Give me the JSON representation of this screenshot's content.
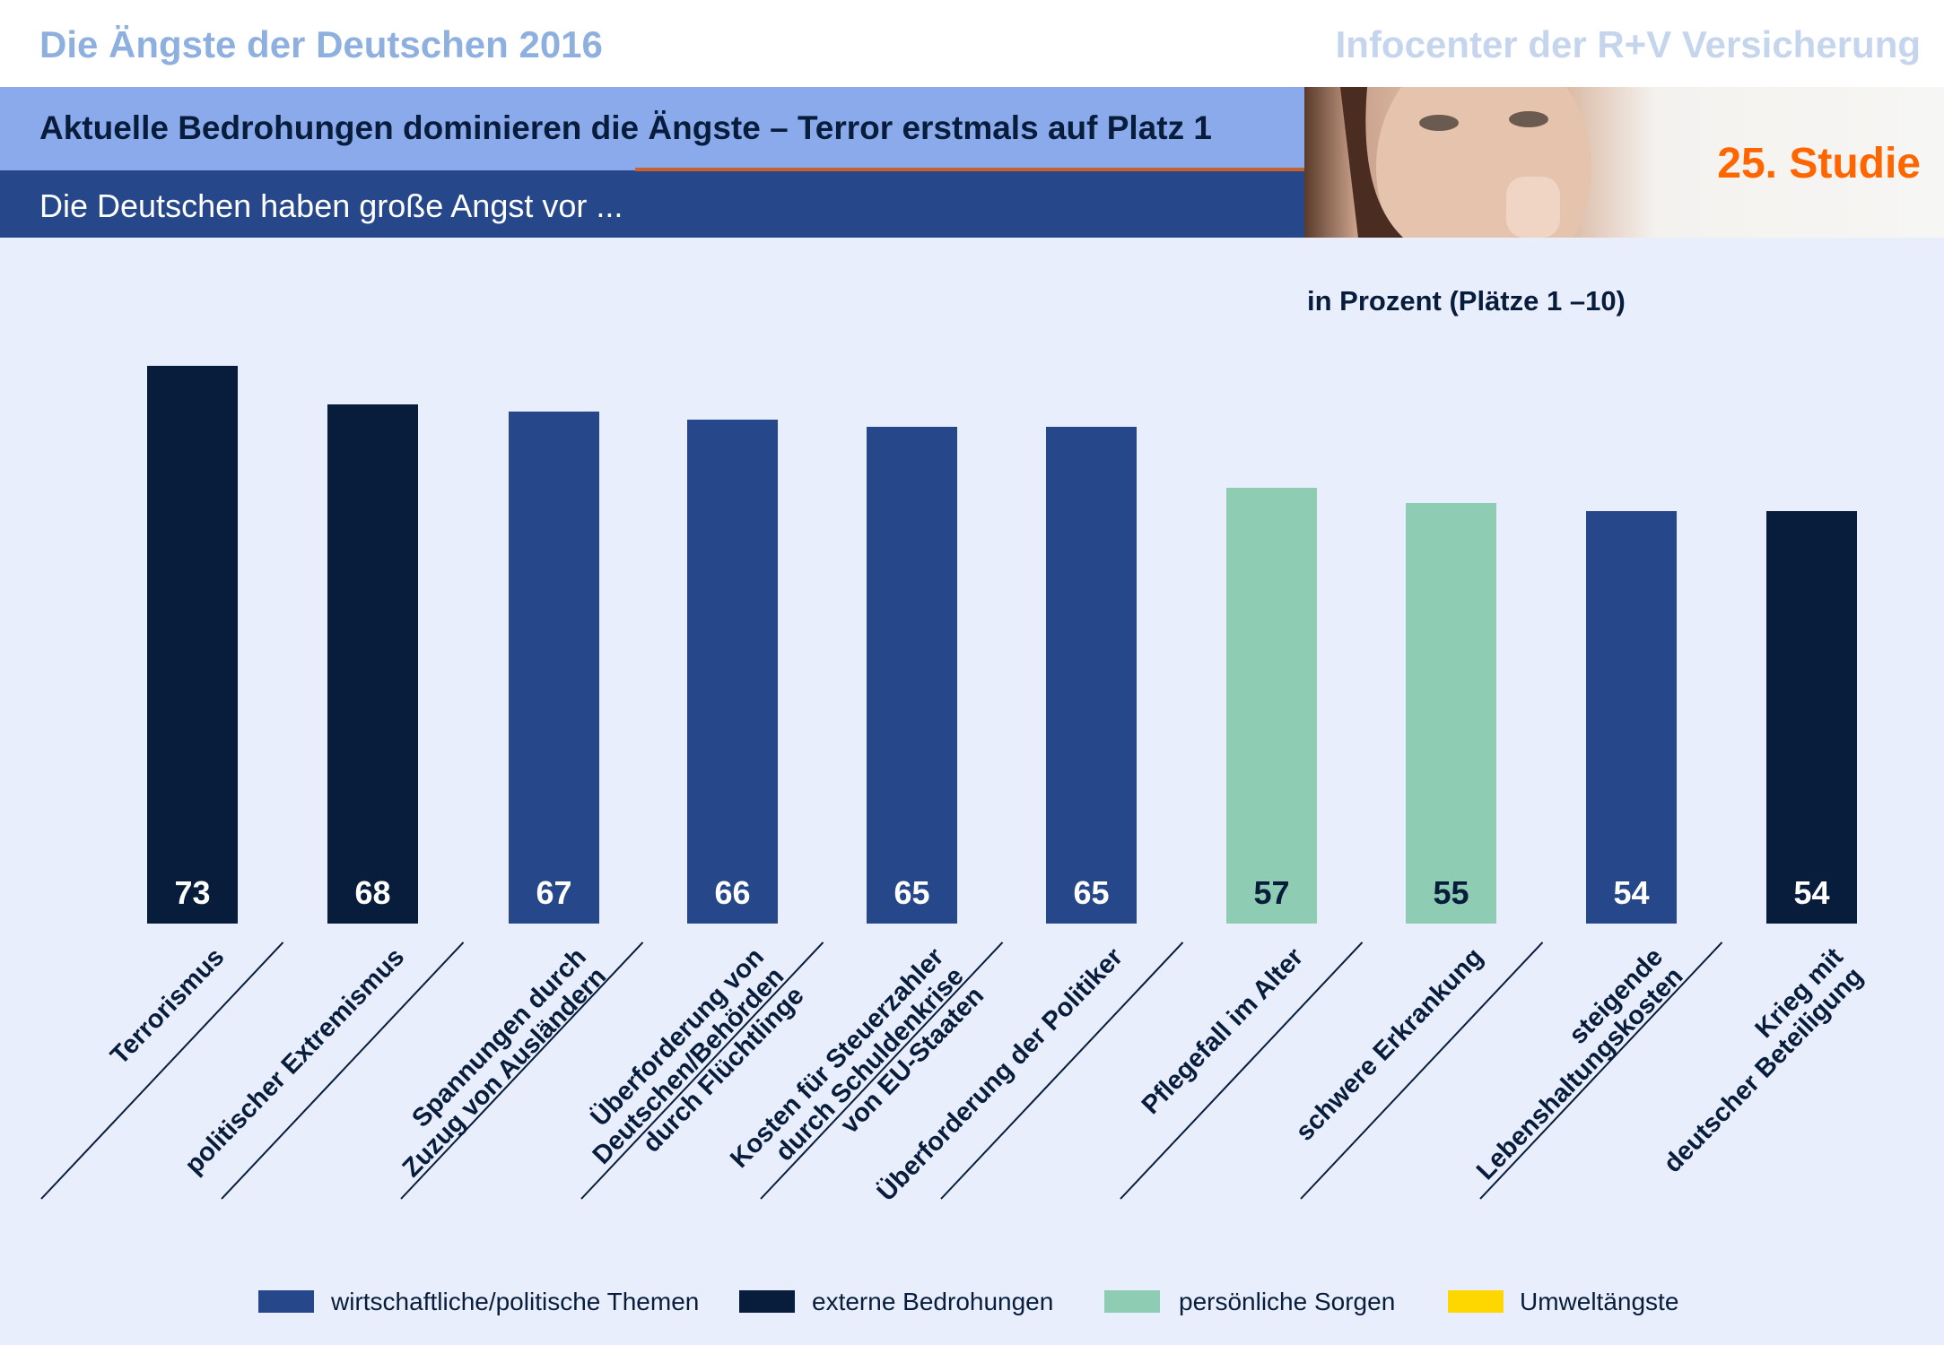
{
  "header": {
    "title": "Die Ängste der Deutschen 2016",
    "org": "Infocenter der R+V Versicherung",
    "headline": "Aktuelle Bedrohungen dominieren die Ängste – Terror erstmals auf Platz 1",
    "subtitle": "Die Deutschen haben große Angst vor ...",
    "study": "25. Studie"
  },
  "chart_data": {
    "type": "bar",
    "subtitle": "in Prozent (Plätze 1 –10)",
    "categories": [
      "Terrorismus",
      "politischer Extremismus",
      "Spannungen durch\nZuzug von Ausländern",
      "Überforderung von\nDeutschen/Behörden\ndurch Flüchtlinge",
      "Kosten für Steuerzahler\ndurch Schuldenkrise\nvon EU-Staaten",
      "Überforderung der Politiker",
      "Pflegefall im Alter",
      "schwere Erkrankung",
      "steigende\nLebenshaltungskosten",
      "Krieg mit\ndeutscher Beteiligung"
    ],
    "values": [
      73,
      68,
      67,
      66,
      65,
      65,
      57,
      55,
      54,
      54
    ],
    "groups": [
      "externe Bedrohungen",
      "externe Bedrohungen",
      "wirtschaftliche/politische Themen",
      "wirtschaftliche/politische Themen",
      "wirtschaftliche/politische Themen",
      "wirtschaftliche/politische Themen",
      "persönliche Sorgen",
      "persönliche Sorgen",
      "wirtschaftliche/politische Themen",
      "externe Bedrohungen"
    ],
    "legend": [
      {
        "name": "wirtschaftliche/politische Themen",
        "color": "#26478A"
      },
      {
        "name": "externe Bedrohungen",
        "color": "#071D3B"
      },
      {
        "name": "persönliche Sorgen",
        "color": "#8ECDB4"
      },
      {
        "name": "Umweltängste",
        "color": "#FFD700"
      }
    ],
    "legend_position": "bottom",
    "grid": false
  }
}
